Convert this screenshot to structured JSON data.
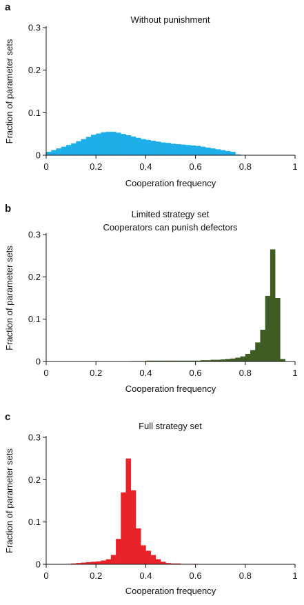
{
  "chart_data": [
    {
      "type": "bar",
      "panel": "a",
      "title": "Without punishment",
      "xlabel": "Cooperation frequency",
      "ylabel": "Fraction of parameter sets",
      "xlim": [
        0,
        1
      ],
      "ylim": [
        0,
        0.3
      ],
      "xticks": [
        "0",
        "0.2",
        "0.4",
        "0.6",
        "0.8",
        "1"
      ],
      "yticks": [
        "0",
        "0.1",
        "0.2",
        "0.3"
      ],
      "bin_width": 0.02,
      "color": "#1eaee8",
      "x": [
        0.01,
        0.03,
        0.05,
        0.07,
        0.09,
        0.11,
        0.13,
        0.15,
        0.17,
        0.19,
        0.21,
        0.23,
        0.25,
        0.27,
        0.29,
        0.31,
        0.33,
        0.35,
        0.37,
        0.39,
        0.41,
        0.43,
        0.45,
        0.47,
        0.49,
        0.51,
        0.53,
        0.55,
        0.57,
        0.59,
        0.61,
        0.63,
        0.65,
        0.67,
        0.69,
        0.71,
        0.73,
        0.75,
        0.77
      ],
      "values": [
        0.008,
        0.012,
        0.016,
        0.02,
        0.024,
        0.028,
        0.033,
        0.038,
        0.043,
        0.048,
        0.051,
        0.054,
        0.055,
        0.055,
        0.053,
        0.05,
        0.047,
        0.044,
        0.041,
        0.038,
        0.036,
        0.034,
        0.032,
        0.03,
        0.029,
        0.027,
        0.026,
        0.025,
        0.024,
        0.023,
        0.022,
        0.02,
        0.018,
        0.016,
        0.014,
        0.012,
        0.01,
        0.008,
        0.002
      ]
    },
    {
      "type": "bar",
      "panel": "b",
      "title": "Limited strategy set",
      "subtitle": "Cooperators can punish defectors",
      "xlabel": "Cooperation frequency",
      "ylabel": "Fraction of parameter sets",
      "xlim": [
        0,
        1
      ],
      "ylim": [
        0,
        0.3
      ],
      "xticks": [
        "0",
        "0.2",
        "0.4",
        "0.6",
        "0.8",
        "1"
      ],
      "yticks": [
        "0",
        "0.1",
        "0.2",
        "0.3"
      ],
      "bin_width": 0.02,
      "color": "#3f5d23",
      "x": [
        0.35,
        0.37,
        0.39,
        0.41,
        0.43,
        0.45,
        0.47,
        0.49,
        0.51,
        0.53,
        0.55,
        0.57,
        0.59,
        0.61,
        0.63,
        0.65,
        0.67,
        0.69,
        0.71,
        0.73,
        0.75,
        0.77,
        0.79,
        0.81,
        0.83,
        0.85,
        0.87,
        0.89,
        0.91,
        0.93,
        0.95
      ],
      "values": [
        0.001,
        0.001,
        0.001,
        0.002,
        0.002,
        0.002,
        0.002,
        0.002,
        0.002,
        0.002,
        0.002,
        0.002,
        0.002,
        0.002,
        0.003,
        0.003,
        0.004,
        0.004,
        0.005,
        0.006,
        0.007,
        0.009,
        0.012,
        0.018,
        0.027,
        0.045,
        0.075,
        0.155,
        0.265,
        0.15,
        0.006
      ]
    },
    {
      "type": "bar",
      "panel": "c",
      "title": "Full strategy set",
      "xlabel": "Cooperation frequency",
      "ylabel": "Fraction of parameter sets",
      "xlim": [
        0,
        1
      ],
      "ylim": [
        0,
        0.3
      ],
      "xticks": [
        "0",
        "0.2",
        "0.4",
        "0.6",
        "0.8",
        "1"
      ],
      "yticks": [
        "0",
        "0.1",
        "0.2",
        "0.3"
      ],
      "bin_width": 0.02,
      "color": "#e8232a",
      "x": [
        0.09,
        0.11,
        0.13,
        0.15,
        0.17,
        0.19,
        0.21,
        0.23,
        0.25,
        0.27,
        0.29,
        0.31,
        0.33,
        0.35,
        0.37,
        0.39,
        0.41,
        0.43,
        0.45,
        0.47,
        0.49,
        0.51,
        0.53,
        0.55,
        0.57,
        0.59
      ],
      "values": [
        0.001,
        0.002,
        0.003,
        0.004,
        0.005,
        0.006,
        0.007,
        0.009,
        0.012,
        0.022,
        0.06,
        0.17,
        0.25,
        0.175,
        0.085,
        0.045,
        0.032,
        0.022,
        0.012,
        0.006,
        0.003,
        0.002,
        0.002,
        0.001,
        0.001,
        0.001
      ]
    }
  ]
}
